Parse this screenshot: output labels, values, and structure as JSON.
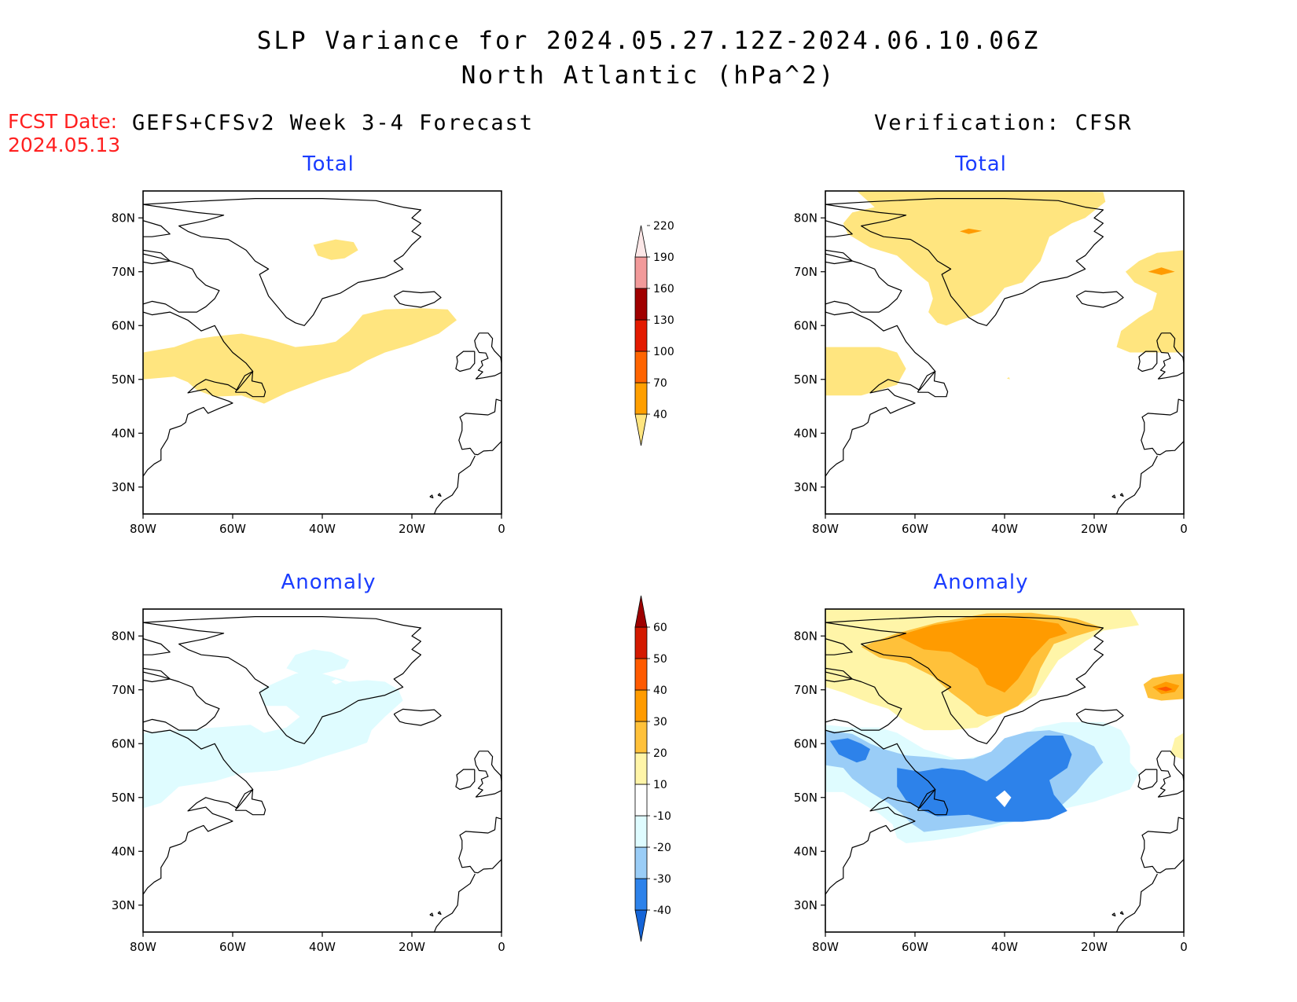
{
  "header": {
    "title_line1": "SLP Variance for 2024.05.27.12Z-2024.06.10.06Z",
    "title_line2": "North Atlantic (hPa^2)",
    "fcst_label": "FCST Date:",
    "fcst_date": "2024.05.13",
    "left_column_title": "GEFS+CFSv2 Week 3-4 Forecast",
    "right_column_title": "Verification: CFSR"
  },
  "panels": [
    {
      "id": "forecast-total",
      "subtitle": "Total"
    },
    {
      "id": "verification-total",
      "subtitle": "Total"
    },
    {
      "id": "forecast-anomaly",
      "subtitle": "Anomaly"
    },
    {
      "id": "verification-anomaly",
      "subtitle": "Anomaly"
    }
  ],
  "axes": {
    "lon_ticks": [
      "80W",
      "60W",
      "40W",
      "20W",
      "0"
    ],
    "lat_ticks": [
      "80N",
      "70N",
      "60N",
      "50N",
      "40N",
      "30N"
    ],
    "lon_range": [
      -80,
      0
    ],
    "lat_range": [
      25,
      85
    ]
  },
  "colorbars": {
    "total": {
      "levels": [
        "40",
        "70",
        "100",
        "130",
        "160",
        "190",
        "220"
      ],
      "colors": [
        "#ffe57f",
        "#ff9f00",
        "#ff6400",
        "#e31a00",
        "#a00000",
        "#f29a9a",
        "#fce7e7"
      ]
    },
    "anomaly": {
      "levels": [
        "-40",
        "-30",
        "-20",
        "-10",
        "10",
        "20",
        "30",
        "40",
        "50",
        "60"
      ],
      "colors": [
        "#1565d8",
        "#2d82ea",
        "#9acdf7",
        "#dffcff",
        "#ffffff",
        "#fff5a8",
        "#ffc13a",
        "#ff9b00",
        "#ff5a00",
        "#d31900",
        "#9e0000"
      ]
    }
  },
  "colors": {
    "title_text": "#000000",
    "subtitle_blue": "#1a3cff",
    "fcst_red": "#ff2020",
    "shade_yellow": "#ffe57f",
    "shade_light_yellow": "#fff5a8",
    "shade_gold": "#ffc13a",
    "shade_orange": "#ff9b00",
    "shade_red_orange": "#ff5a00",
    "shade_light_cyan": "#dffcff",
    "shade_light_blue": "#9acdf7",
    "shade_blue": "#2d82ea"
  }
}
